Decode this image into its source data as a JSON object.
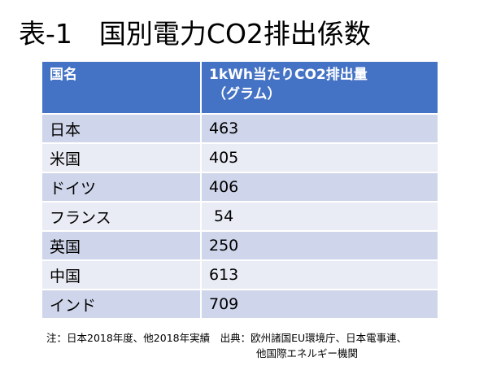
{
  "title": "表-1　国別電力CO2排出係数",
  "table": {
    "header": {
      "col1": "国名",
      "col2_line1": "1kWh当たりCO2排出量",
      "col2_line2": "（グラム）"
    },
    "rows": [
      {
        "country": "日本",
        "value": "463"
      },
      {
        "country": "米国",
        "value": "405"
      },
      {
        "country": "ドイツ",
        "value": "406"
      },
      {
        "country": "フランス",
        "value": " 54"
      },
      {
        "country": "英国",
        "value": "250"
      },
      {
        "country": "中国",
        "value": "613"
      },
      {
        "country": "インド",
        "value": "709"
      }
    ]
  },
  "footnote": {
    "line1": "注：日本2018年度、他2018年実績　出典：欧州諸国EU環境庁、日本電事連、",
    "line2": "他国際エネルギー機関"
  }
}
